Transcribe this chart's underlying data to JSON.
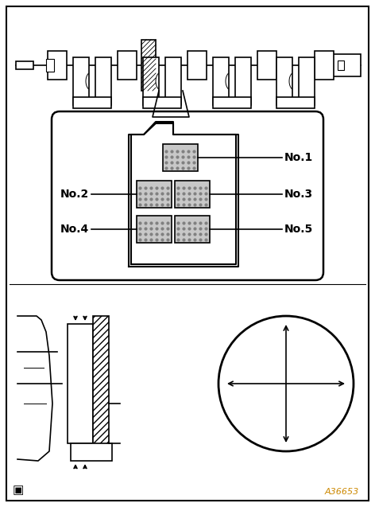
{
  "bg_color": "#ffffff",
  "border_color": "#000000",
  "fig_width": 4.72,
  "fig_height": 6.37,
  "dpi": 100,
  "label_no1": "No.1",
  "label_no2": "No.2",
  "label_no3": "No.3",
  "label_no4": "No.4",
  "label_no5": "No.5",
  "ref_code": "A36653"
}
